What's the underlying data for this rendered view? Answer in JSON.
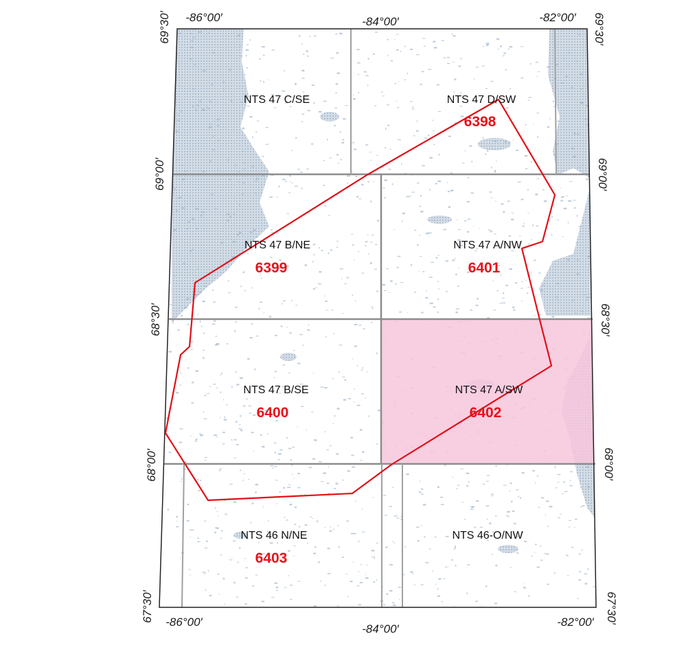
{
  "map": {
    "longitude_labels_top": [
      "-86°00′",
      "-84°00′",
      "-82°00′"
    ],
    "longitude_labels_bottom": [
      "-86°00′",
      "-84°00′",
      "-82°00′"
    ],
    "latitude_labels_left": [
      "69°30′",
      "69°00′",
      "68°30′",
      "68°00′",
      "67°30′"
    ],
    "latitude_labels_right": [
      "69°30′",
      "69°00′",
      "68°30′",
      "68°00′",
      "67°30′"
    ],
    "sheets": [
      {
        "name": "NTS 47 C/SE",
        "code": ""
      },
      {
        "name": "NTS 47 D/SW",
        "code": "6398"
      },
      {
        "name": "NTS 47 B/NE",
        "code": "6399"
      },
      {
        "name": "NTS 47 A/NW",
        "code": "6401"
      },
      {
        "name": "NTS 47 B/SE",
        "code": "6400"
      },
      {
        "name": "NTS 47 A/SW",
        "code": "6402"
      },
      {
        "name": "NTS 46 N/NE",
        "code": "6403"
      },
      {
        "name": "NTS 46-O/NW",
        "code": ""
      }
    ],
    "highlighted_sheet": "NTS 47 A/SW",
    "colors": {
      "code_text": "#e8101a",
      "boundary": "#e01018",
      "highlight": "#f7c6dc",
      "water": "#c3d0dc",
      "land": "#ffffff"
    }
  }
}
